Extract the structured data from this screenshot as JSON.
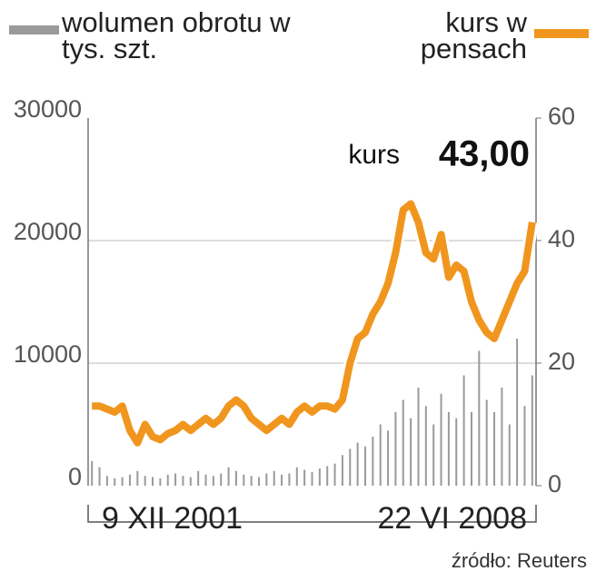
{
  "chart_data": {
    "type": "bar-line",
    "source": "źródło: Reuters",
    "categories": [
      "9 XII 2001",
      null,
      null,
      null,
      null,
      null,
      null,
      null,
      null,
      null,
      null,
      null,
      null,
      null,
      null,
      null,
      null,
      null,
      null,
      null,
      null,
      null,
      null,
      null,
      null,
      null,
      null,
      null,
      null,
      null,
      null,
      null,
      null,
      null,
      null,
      null,
      null,
      null,
      null,
      null,
      null,
      null,
      null,
      null,
      null,
      null,
      null,
      null,
      null,
      null,
      null,
      null,
      null,
      null,
      null,
      null,
      null,
      null,
      "22 VI 2008"
    ],
    "series": [
      {
        "name": "wolumen obrotu w tys. szt.",
        "color": "#9a9a9a",
        "type": "bar",
        "values": [
          2000,
          1500,
          800,
          600,
          700,
          900,
          1200,
          800,
          700,
          600,
          900,
          1000,
          800,
          700,
          1200,
          900,
          800,
          1000,
          1500,
          1200,
          900,
          800,
          700,
          1000,
          1200,
          900,
          1000,
          1500,
          1300,
          1100,
          1400,
          1600,
          1800,
          2500,
          3000,
          3500,
          3200,
          4000,
          5000,
          4500,
          6000,
          7000,
          5500,
          8000,
          6500,
          5000,
          7500,
          6000,
          5500,
          9000,
          6000,
          11000,
          7000,
          6000,
          8000,
          5000,
          12000,
          6500,
          9000
        ]
      },
      {
        "name": "kurs w pensach",
        "color": "#f0961e",
        "type": "line",
        "axis": "y2",
        "annotation": "kurs",
        "values": [
          13,
          13,
          12.5,
          12,
          13,
          9,
          7,
          10,
          8,
          7.5,
          8.5,
          9,
          10,
          9,
          10,
          11,
          10,
          11,
          13,
          14,
          13,
          11,
          10,
          9,
          10,
          11,
          10,
          12,
          13,
          12,
          13,
          13,
          12.5,
          14,
          20,
          24,
          25,
          28,
          30,
          33,
          38,
          45,
          46,
          43,
          38,
          37,
          41,
          34,
          36,
          35,
          30,
          27,
          25,
          24,
          27,
          30,
          33,
          35,
          43
        ],
        "value_labels": [
          null,
          null,
          null,
          null,
          null,
          null,
          null,
          null,
          null,
          null,
          null,
          null,
          null,
          null,
          null,
          null,
          null,
          null,
          null,
          null,
          null,
          null,
          null,
          null,
          null,
          null,
          null,
          null,
          null,
          null,
          null,
          null,
          null,
          null,
          null,
          null,
          null,
          null,
          null,
          null,
          null,
          null,
          null,
          null,
          null,
          null,
          null,
          null,
          null,
          null,
          null,
          null,
          null,
          null,
          null,
          null,
          null,
          null,
          "43,00"
        ]
      }
    ],
    "ylim": [
      0,
      30000
    ],
    "yticks": [
      0,
      10000,
      20000,
      30000
    ],
    "y2lim": [
      0,
      60
    ],
    "y2ticks": [
      0,
      20,
      40,
      60
    ],
    "grid": true
  }
}
